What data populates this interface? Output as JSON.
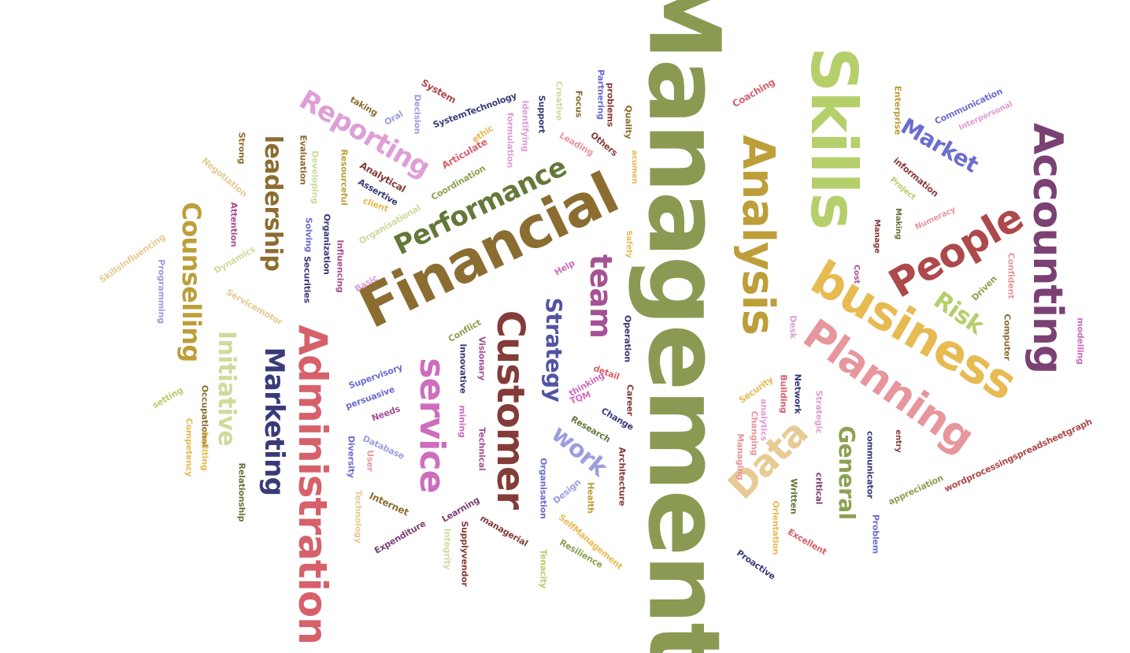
{
  "word_cloud": {
    "words": [
      {
        "text": "Management",
        "color": "#8a9a52",
        "rotated": true
      },
      {
        "text": "Financial",
        "color": "#8c6d31",
        "rotated": false
      },
      {
        "text": "Skills",
        "color": "#b5cf6b",
        "rotated": true
      },
      {
        "text": "Administration",
        "color": "#d6616b",
        "rotated": true
      },
      {
        "text": "business",
        "color": "#e7ba52",
        "rotated": true
      },
      {
        "text": "Accounting",
        "color": "#7b4173",
        "rotated": true
      },
      {
        "text": "Customer",
        "color": "#843c39",
        "rotated": true
      },
      {
        "text": "Analysis",
        "color": "#bd9e39",
        "rotated": true
      },
      {
        "text": "Planning",
        "color": "#e7969c",
        "rotated": true
      },
      {
        "text": "service",
        "color": "#ce6dbd",
        "rotated": true
      },
      {
        "text": "People",
        "color": "#ad494a",
        "rotated": false
      },
      {
        "text": "Performance",
        "color": "#637939",
        "rotated": false
      },
      {
        "text": "Marketing",
        "color": "#393b79",
        "rotated": true
      },
      {
        "text": "Counselling",
        "color": "#bd9e39",
        "rotated": true
      },
      {
        "text": "Reporting",
        "color": "#de9ed6",
        "rotated": true
      },
      {
        "text": "leadership",
        "color": "#8c6d31",
        "rotated": true
      },
      {
        "text": "team",
        "color": "#a55194",
        "rotated": true
      },
      {
        "text": "Data",
        "color": "#e7cb94",
        "rotated": false
      },
      {
        "text": "Initiative",
        "color": "#cedb9c",
        "rotated": true
      },
      {
        "text": "Strategy",
        "color": "#5254a3",
        "rotated": true
      },
      {
        "text": "work",
        "color": "#9c9ede",
        "rotated": true
      },
      {
        "text": "General",
        "color": "#8ca252",
        "rotated": true
      },
      {
        "text": "Market",
        "color": "#6b6ecf",
        "rotated": true
      },
      {
        "text": "Risk",
        "color": "#b5cf6b",
        "rotated": true
      },
      {
        "text": "Communication",
        "color": "#6b6ecf",
        "rotated": false
      },
      {
        "text": "Interpersonal",
        "color": "#de9ed6",
        "rotated": false
      },
      {
        "text": "Enterprise",
        "color": "#bd9e39",
        "rotated": true
      },
      {
        "text": "information",
        "color": "#843c39",
        "rotated": true
      },
      {
        "text": "Project",
        "color": "#b5cf6b",
        "rotated": true
      },
      {
        "text": "Numeracy",
        "color": "#e7969c",
        "rotated": false
      },
      {
        "text": "Making",
        "color": "#637939",
        "rotated": true
      },
      {
        "text": "Manage",
        "color": "#843c39",
        "rotated": true
      },
      {
        "text": "Cost",
        "color": "#a55194",
        "rotated": true
      },
      {
        "text": "Confident",
        "color": "#e7969c",
        "rotated": true
      },
      {
        "text": "Driven",
        "color": "#8ca252",
        "rotated": false
      },
      {
        "text": "Computer",
        "color": "#8c6d31",
        "rotated": true
      },
      {
        "text": "modelling",
        "color": "#ce6dbd",
        "rotated": true
      },
      {
        "text": "Coaching",
        "color": "#d6616b",
        "rotated": false
      },
      {
        "text": "Quality",
        "color": "#8c6d31",
        "rotated": true
      },
      {
        "text": "Partnering",
        "color": "#6b6ecf",
        "rotated": true
      },
      {
        "text": "problems",
        "color": "#843c39",
        "rotated": true
      },
      {
        "text": "Focus",
        "color": "#8c6d31",
        "rotated": true
      },
      {
        "text": "Creative",
        "color": "#cedb9c",
        "rotated": true
      },
      {
        "text": "Support",
        "color": "#393b79",
        "rotated": true
      },
      {
        "text": "Identifying",
        "color": "#de9ed6",
        "rotated": true
      },
      {
        "text": "formulation",
        "color": "#de9ed6",
        "rotated": true
      },
      {
        "text": "ethic",
        "color": "#e7ba52",
        "rotated": false
      },
      {
        "text": "Leading",
        "color": "#e7969c",
        "rotated": false
      },
      {
        "text": "Others",
        "color": "#843c39",
        "rotated": false
      },
      {
        "text": "acumen",
        "color": "#e7ba52",
        "rotated": true
      },
      {
        "text": "Safety",
        "color": "#e7ba52",
        "rotated": true
      },
      {
        "text": "System",
        "color": "#ad494a",
        "rotated": false
      },
      {
        "text": "SystemTechnology",
        "color": "#393b79",
        "rotated": false
      },
      {
        "text": "Decision",
        "color": "#9c9ede",
        "rotated": true
      },
      {
        "text": "Oral",
        "color": "#9c9ede",
        "rotated": false
      },
      {
        "text": "taking",
        "color": "#8c6d31",
        "rotated": false
      },
      {
        "text": "Articulate",
        "color": "#d6616b",
        "rotated": false
      },
      {
        "text": "Coordination",
        "color": "#8ca252",
        "rotated": false
      },
      {
        "text": "Analytical",
        "color": "#843c39",
        "rotated": false
      },
      {
        "text": "Assertive",
        "color": "#393b79",
        "rotated": false
      },
      {
        "text": "client",
        "color": "#e7ba52",
        "rotated": false
      },
      {
        "text": "Organisational",
        "color": "#cedb9c",
        "rotated": false
      },
      {
        "text": "Resourceful",
        "color": "#bd9e39",
        "rotated": true
      },
      {
        "text": "Developing",
        "color": "#cedb9c",
        "rotated": true
      },
      {
        "text": "Evaluation",
        "color": "#8c6d31",
        "rotated": true
      },
      {
        "text": "Strong",
        "color": "#8c6d31",
        "rotated": true
      },
      {
        "text": "Negotiation",
        "color": "#e7cb94",
        "rotated": true
      },
      {
        "text": "Attention",
        "color": "#a55194",
        "rotated": true
      },
      {
        "text": "Solving",
        "color": "#6b6ecf",
        "rotated": true
      },
      {
        "text": "Organization",
        "color": "#393b79",
        "rotated": true
      },
      {
        "text": "Securities",
        "color": "#393b79",
        "rotated": true
      },
      {
        "text": "Influencing",
        "color": "#a55194",
        "rotated": true
      },
      {
        "text": "Basic",
        "color": "#de9ed6",
        "rotated": false
      },
      {
        "text": "Dynamics",
        "color": "#cedb9c",
        "rotated": false
      },
      {
        "text": "SkillsInfluencing",
        "color": "#e7cb94",
        "rotated": false
      },
      {
        "text": "Programming",
        "color": "#9c9ede",
        "rotated": true
      },
      {
        "text": "Servicemotor",
        "color": "#e7cb94",
        "rotated": false
      },
      {
        "text": "Help",
        "color": "#ce6dbd",
        "rotated": false
      },
      {
        "text": "Conflict",
        "color": "#8ca252",
        "rotated": false
      },
      {
        "text": "Visionary",
        "color": "#a55194",
        "rotated": true
      },
      {
        "text": "Innovative",
        "color": "#393b79",
        "rotated": true
      },
      {
        "text": "Supervisory",
        "color": "#6b6ecf",
        "rotated": false
      },
      {
        "text": "persuasive",
        "color": "#6b6ecf",
        "rotated": false
      },
      {
        "text": "Needs",
        "color": "#a55194",
        "rotated": false
      },
      {
        "text": "mining",
        "color": "#ce6dbd",
        "rotated": true
      },
      {
        "text": "Technical",
        "color": "#a55194",
        "rotated": true
      },
      {
        "text": "Database",
        "color": "#9c9ede",
        "rotated": false
      },
      {
        "text": "Diversity",
        "color": "#6b6ecf",
        "rotated": true
      },
      {
        "text": "User",
        "color": "#e7969c",
        "rotated": true
      },
      {
        "text": "Internet",
        "color": "#8c6d31",
        "rotated": false
      },
      {
        "text": "Technology",
        "color": "#e7cb94",
        "rotated": true
      },
      {
        "text": "Learning",
        "color": "#7b4173",
        "rotated": false
      },
      {
        "text": "Expenditure",
        "color": "#7b4173",
        "rotated": false
      },
      {
        "text": "Integrity",
        "color": "#cedb9c",
        "rotated": true
      },
      {
        "text": "Supplyvendor",
        "color": "#843c39",
        "rotated": true
      },
      {
        "text": "managerial",
        "color": "#843c39",
        "rotated": false
      },
      {
        "text": "Tenacity",
        "color": "#b5cf6b",
        "rotated": true
      },
      {
        "text": "Organisation",
        "color": "#6b6ecf",
        "rotated": true
      },
      {
        "text": "Design",
        "color": "#9c9ede",
        "rotated": false
      },
      {
        "text": "Health",
        "color": "#bd9e39",
        "rotated": true
      },
      {
        "text": "SelfManagement",
        "color": "#e7ba52",
        "rotated": false
      },
      {
        "text": "Resilience",
        "color": "#8ca252",
        "rotated": false
      },
      {
        "text": "Architecture",
        "color": "#843c39",
        "rotated": true
      },
      {
        "text": "Research",
        "color": "#637939",
        "rotated": false
      },
      {
        "text": "Change",
        "color": "#393b79",
        "rotated": false
      },
      {
        "text": "TQM",
        "color": "#ce6dbd",
        "rotated": false
      },
      {
        "text": "thinking",
        "color": "#ce6dbd",
        "rotated": false
      },
      {
        "text": "detail",
        "color": "#d6616b",
        "rotated": false
      },
      {
        "text": "Career",
        "color": "#843c39",
        "rotated": true
      },
      {
        "text": "Operation",
        "color": "#393b79",
        "rotated": true
      },
      {
        "text": "Security",
        "color": "#e7ba52",
        "rotated": false
      },
      {
        "text": "Building",
        "color": "#d6616b",
        "rotated": true
      },
      {
        "text": "Changing",
        "color": "#e7969c",
        "rotated": true
      },
      {
        "text": "Managing",
        "color": "#e7969c",
        "rotated": true
      },
      {
        "text": "analytics",
        "color": "#de9ed6",
        "rotated": true
      },
      {
        "text": "Network",
        "color": "#393b79",
        "rotated": true
      },
      {
        "text": "Strategic",
        "color": "#de9ed6",
        "rotated": true
      },
      {
        "text": "Desk",
        "color": "#de9ed6",
        "rotated": true
      },
      {
        "text": "critical",
        "color": "#7b4173",
        "rotated": true
      },
      {
        "text": "Written",
        "color": "#637939",
        "rotated": true
      },
      {
        "text": "Orientation",
        "color": "#e7ba52",
        "rotated": true
      },
      {
        "text": "Excellent",
        "color": "#d6616b",
        "rotated": false
      },
      {
        "text": "Proactive",
        "color": "#393b79",
        "rotated": false
      },
      {
        "text": "communicator",
        "color": "#393b79",
        "rotated": true
      },
      {
        "text": "Problem",
        "color": "#6b6ecf",
        "rotated": true
      },
      {
        "text": "entry",
        "color": "#843c39",
        "rotated": true
      },
      {
        "text": "appreciation",
        "color": "#8ca252",
        "rotated": false
      },
      {
        "text": "wordprocessingspreadsheetgraph",
        "color": "#ad494a",
        "rotated": false
      },
      {
        "text": "Relationship",
        "color": "#637939",
        "rotated": true
      },
      {
        "text": "Occupational",
        "color": "#8c6d31",
        "rotated": true
      },
      {
        "text": "Competency",
        "color": "#e7ba52",
        "rotated": true
      },
      {
        "text": "Auditing",
        "color": "#e7ba52",
        "rotated": true
      },
      {
        "text": "setting",
        "color": "#b5cf6b",
        "rotated": false
      }
    ]
  }
}
